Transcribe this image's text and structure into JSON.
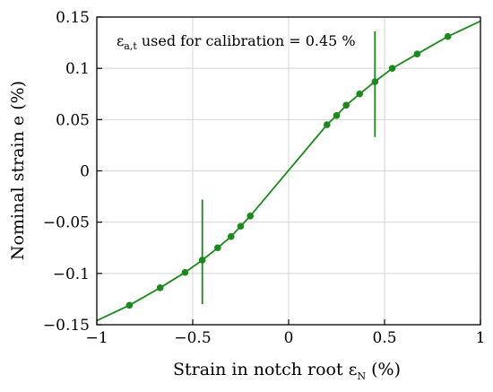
{
  "chart_data": {
    "type": "line",
    "title": "",
    "xlabel": {
      "main": "Strain in notch root ε",
      "sub": "N",
      "suffix": " (%)"
    },
    "ylabel": "Nominal strain e (%)",
    "xlim": [
      -1,
      1
    ],
    "ylim": [
      -0.15,
      0.15
    ],
    "grid": true,
    "x_ticks": [
      -1,
      -0.5,
      0,
      0.5,
      1
    ],
    "x_tick_labels": [
      "−1",
      "−0.5",
      "0",
      "0.5",
      "1"
    ],
    "y_ticks": [
      -0.15,
      -0.1,
      -0.05,
      0,
      0.05,
      0.1,
      0.15
    ],
    "y_tick_labels": [
      "−0.15",
      "−0.1",
      "−0.05",
      "0",
      "0.05",
      "0.1",
      "0.15"
    ],
    "annotation": {
      "main": "ε",
      "sub": "a,t",
      "suffix": " used for calibration = 0.45 %"
    },
    "series": [
      {
        "color": "#1a8a1a",
        "curve_x": [
          -1,
          -0.83,
          -0.67,
          -0.54,
          -0.45,
          -0.37,
          -0.3,
          -0.25,
          -0.2,
          0.2,
          0.25,
          0.3,
          0.37,
          0.45,
          0.54,
          0.67,
          0.83,
          1
        ],
        "curve_y": [
          -0.146,
          -0.131,
          -0.114,
          -0.099,
          -0.087,
          -0.075,
          -0.064,
          -0.054,
          -0.044,
          0.045,
          0.054,
          0.064,
          0.075,
          0.087,
          0.1,
          0.114,
          0.131,
          0.146
        ],
        "marker_x": [
          -0.83,
          -0.67,
          -0.54,
          -0.45,
          -0.37,
          -0.3,
          -0.25,
          -0.2,
          0.2,
          0.25,
          0.3,
          0.37,
          0.45,
          0.54,
          0.67,
          0.83
        ],
        "marker_y": [
          -0.131,
          -0.114,
          -0.099,
          -0.087,
          -0.075,
          -0.064,
          -0.054,
          -0.044,
          0.045,
          0.054,
          0.064,
          0.075,
          0.087,
          0.1,
          0.114,
          0.131
        ]
      }
    ],
    "vertical_markers": [
      {
        "x": -0.45,
        "y_range": [
          -0.13,
          -0.028
        ]
      },
      {
        "x": 0.45,
        "y_range": [
          0.033,
          0.136
        ]
      }
    ]
  }
}
